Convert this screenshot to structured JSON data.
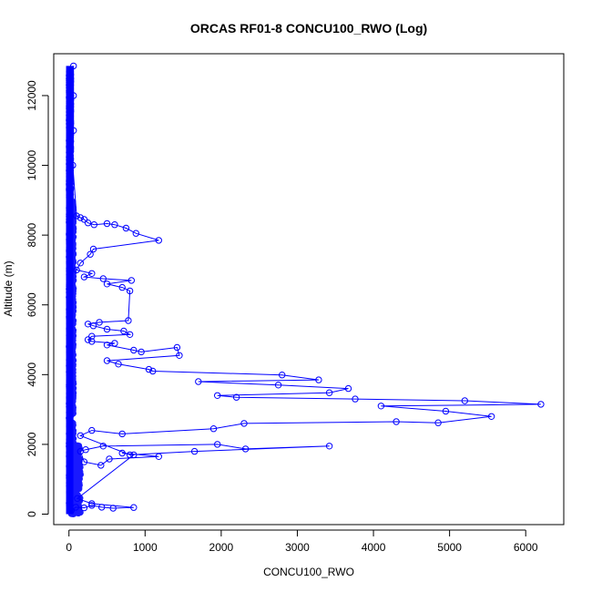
{
  "chart_data": {
    "type": "line",
    "title": "ORCAS RF01-8 CONCU100_RWO (Log)",
    "xlabel": "CONCU100_RWO",
    "ylabel": "Altitude (m)",
    "xlim": [
      -200,
      6500
    ],
    "ylim": [
      -300,
      13200
    ],
    "xticks": [
      0,
      1000,
      2000,
      3000,
      4000,
      5000,
      6000
    ],
    "yticks": [
      0,
      2000,
      4000,
      6000,
      8000,
      10000,
      12000
    ],
    "grid": false,
    "series": [
      {
        "color": "#0000ff",
        "marker": "open-circle",
        "x": [
          30,
          90,
          200,
          300,
          430,
          580,
          850,
          300,
          110,
          850,
          700,
          1180,
          530,
          420,
          200,
          150,
          220,
          450,
          1950,
          2320,
          3420,
          1650,
          800,
          150,
          300,
          700,
          1900,
          2300,
          4300,
          4850,
          5550,
          4950,
          4100,
          6200,
          5200,
          3760,
          2200,
          1950,
          3420,
          3670,
          2750,
          1700,
          3280,
          2800,
          1100,
          1050,
          650,
          500,
          1450,
          1420,
          950,
          850,
          500,
          600,
          300,
          250,
          300,
          800,
          720,
          500,
          320,
          250,
          400,
          780,
          800,
          700,
          500,
          820,
          450,
          200,
          300,
          100,
          150,
          280,
          320,
          1180,
          880,
          750,
          600,
          500,
          330,
          250,
          200,
          150,
          100,
          50,
          60,
          60,
          60
        ],
        "y": [
          100,
          200,
          180,
          250,
          200,
          170,
          190,
          300,
          450,
          1700,
          1750,
          1650,
          1580,
          1400,
          1500,
          1800,
          1850,
          1950,
          2000,
          1870,
          1950,
          1800,
          1700,
          2250,
          2400,
          2300,
          2450,
          2600,
          2650,
          2620,
          2800,
          2950,
          3100,
          3150,
          3250,
          3300,
          3350,
          3400,
          3480,
          3600,
          3700,
          3800,
          3850,
          3990,
          4100,
          4150,
          4300,
          4400,
          4550,
          4780,
          4650,
          4700,
          4850,
          4900,
          4950,
          5000,
          5100,
          5150,
          5250,
          5300,
          5400,
          5450,
          5500,
          5550,
          6400,
          6500,
          6600,
          6700,
          6750,
          6800,
          6900,
          7000,
          7200,
          7450,
          7600,
          7850,
          8050,
          8200,
          8300,
          8330,
          8300,
          8350,
          8450,
          8500,
          8550,
          10000,
          11000,
          12000,
          12850
        ]
      }
    ]
  }
}
